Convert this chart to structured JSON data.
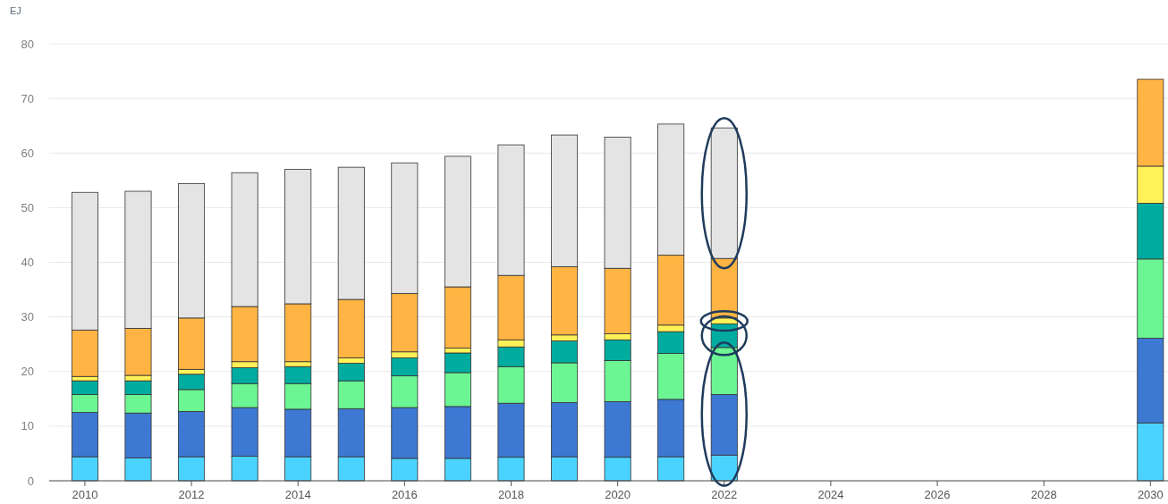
{
  "chart_data": {
    "type": "bar",
    "stacked": true,
    "ylabel": "EJ",
    "x": [
      2010,
      2011,
      2012,
      2013,
      2014,
      2015,
      2016,
      2017,
      2018,
      2019,
      2020,
      2021,
      2022,
      2030
    ],
    "xlim": [
      2009.33,
      2030.33
    ],
    "xticks": [
      2010,
      2012,
      2014,
      2016,
      2018,
      2020,
      2022,
      2024,
      2026,
      2028,
      2030
    ],
    "ylim": [
      0,
      80
    ],
    "yticks": [
      0,
      10,
      20,
      30,
      40,
      50,
      60,
      70,
      80
    ],
    "grid": "y",
    "series": [
      {
        "color": "#4bd3ff",
        "values": [
          4.4,
          4.2,
          4.4,
          4.5,
          4.4,
          4.4,
          4.1,
          4.1,
          4.3,
          4.4,
          4.3,
          4.4,
          4.7,
          10.6
        ]
      },
      {
        "color": "#3d78d3",
        "values": [
          8.1,
          8.2,
          8.3,
          8.9,
          8.7,
          8.8,
          9.3,
          9.5,
          9.9,
          9.9,
          10.2,
          10.5,
          11.1,
          15.5
        ]
      },
      {
        "color": "#6bf593",
        "values": [
          3.3,
          3.4,
          4.0,
          4.4,
          4.7,
          5.1,
          5.8,
          6.2,
          6.7,
          7.3,
          7.5,
          8.4,
          8.6,
          14.5
        ]
      },
      {
        "color": "#00ac9f",
        "values": [
          2.5,
          2.5,
          2.8,
          2.9,
          3.1,
          3.2,
          3.3,
          3.6,
          3.6,
          4.0,
          3.8,
          4.0,
          4.3,
          10.2
        ]
      },
      {
        "color": "#fff157",
        "values": [
          0.8,
          1.0,
          0.9,
          1.1,
          0.9,
          1.0,
          1.1,
          0.9,
          1.3,
          1.1,
          1.1,
          1.2,
          1.1,
          6.8
        ]
      },
      {
        "color": "#ffb443",
        "values": [
          8.5,
          8.6,
          9.4,
          10.1,
          10.6,
          10.7,
          10.7,
          11.2,
          11.8,
          12.5,
          12.0,
          12.8,
          10.9,
          15.9
        ]
      },
      {
        "color": "#e4e4e4",
        "values": [
          25.2,
          25.1,
          24.6,
          24.5,
          24.6,
          24.2,
          23.9,
          23.9,
          23.9,
          24.1,
          24.0,
          24.0,
          23.9,
          null
        ]
      }
    ]
  }
}
